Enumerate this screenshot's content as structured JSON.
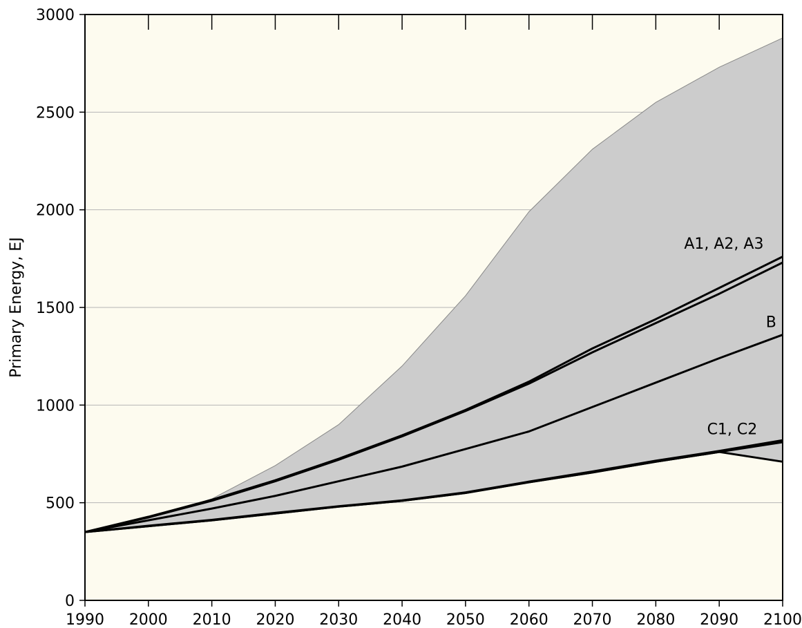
{
  "chart_data": {
    "type": "line",
    "ylabel": "Primary Energy, EJ",
    "xlabel": "",
    "title": "",
    "xlim": [
      1990,
      2100
    ],
    "ylim": [
      0,
      3000
    ],
    "x_ticks": [
      1990,
      2000,
      2010,
      2020,
      2030,
      2040,
      2050,
      2060,
      2070,
      2080,
      2090,
      2100
    ],
    "y_ticks": [
      0,
      500,
      1000,
      1500,
      2000,
      2500,
      3000
    ],
    "grid": "horizontal",
    "x": [
      1990,
      2000,
      2010,
      2020,
      2030,
      2040,
      2050,
      2060,
      2070,
      2080,
      2090,
      2100
    ],
    "range": {
      "upper": [
        350,
        420,
        520,
        690,
        900,
        1200,
        1560,
        1990,
        2310,
        2550,
        2730,
        2880
      ],
      "lower": [
        350,
        380,
        410,
        445,
        480,
        510,
        550,
        605,
        660,
        715,
        760,
        710
      ]
    },
    "series": [
      {
        "name": "A1, A2, A3",
        "values": [
          350,
          425,
          510,
          610,
          720,
          840,
          970,
          1110,
          1270,
          1420,
          1570,
          1730
        ]
      },
      {
        "name": "A1, A2, A3",
        "values": [
          350,
          428,
          515,
          615,
          725,
          845,
          975,
          1120,
          1290,
          1440,
          1600,
          1760
        ]
      },
      {
        "name": "B",
        "values": [
          350,
          410,
          470,
          535,
          610,
          685,
          775,
          865,
          990,
          1115,
          1240,
          1360
        ]
      },
      {
        "name": "C1, C2",
        "values": [
          350,
          380,
          410,
          445,
          480,
          510,
          550,
          605,
          655,
          710,
          760,
          810
        ]
      },
      {
        "name": "C1, C2",
        "values": [
          350,
          382,
          412,
          448,
          482,
          512,
          553,
          608,
          660,
          715,
          765,
          820
        ]
      },
      {
        "name": "C1, C2",
        "values": [
          350,
          380,
          410,
          445,
          480,
          510,
          550,
          605,
          655,
          710,
          760,
          710
        ]
      }
    ],
    "annotations": [
      {
        "text": "A1, A2, A3",
        "x": 2097,
        "y": 1800
      },
      {
        "text": "B",
        "x": 2099,
        "y": 1400
      },
      {
        "text": "C1, C2",
        "x": 2096,
        "y": 850
      }
    ],
    "colors": {
      "background": "#fdfbef",
      "range_fill": "#cccccc",
      "range_edge": "#888888",
      "line": "#000000",
      "grid": "#b5b5b5"
    }
  }
}
